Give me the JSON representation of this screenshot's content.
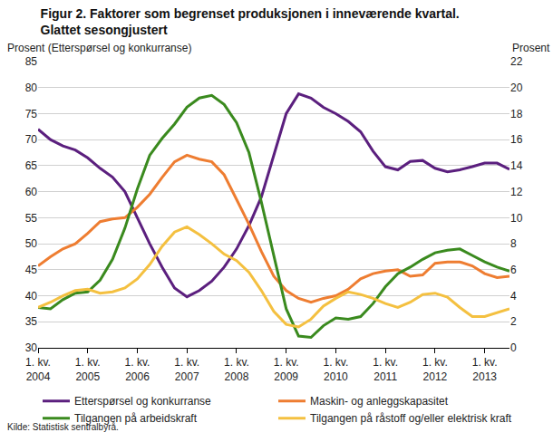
{
  "chart_data": {
    "type": "line",
    "title": "Figur 2. Faktorer som begrenset produksjonen i inneværende kvartal. Glattet sesongjustert",
    "y_label": "Prosent (Etterspørsel og konkurranse)",
    "y2_label": "Prosent",
    "source": "Kilde: Statistisk sentralbyrå.",
    "categories": [
      "1. kv. 2004",
      null,
      null,
      null,
      "1. kv. 2005",
      null,
      null,
      null,
      "1. kv. 2006",
      null,
      null,
      null,
      "1. kv. 2007",
      null,
      null,
      null,
      "1. kv. 2008",
      null,
      null,
      null,
      "1. kv. 2009",
      null,
      null,
      null,
      "1. kv. 2010",
      null,
      null,
      null,
      "1. kv. 2011",
      null,
      null,
      null,
      "1. kv. 2012",
      null,
      null,
      null,
      "1. kv. 2013",
      null,
      null
    ],
    "ylim": [
      30,
      85
    ],
    "yticks": [
      30,
      35,
      40,
      45,
      50,
      55,
      60,
      65,
      70,
      75,
      80,
      85
    ],
    "y2lim": [
      0,
      22
    ],
    "y2ticks": [
      0,
      2,
      4,
      6,
      8,
      10,
      12,
      14,
      16,
      18,
      20,
      22
    ],
    "grid": true,
    "legend": "bottom",
    "series": [
      {
        "name": "Etterspørsel og konkurranse",
        "color": "#5b1f7e",
        "axis": "y",
        "values": [
          72,
          70,
          68.8,
          68,
          66.5,
          64.5,
          62.8,
          60,
          55,
          50,
          45.5,
          41.5,
          39.8,
          41,
          42.8,
          45.5,
          49,
          53.5,
          59,
          67,
          75,
          78.8,
          78,
          76.2,
          75,
          73.5,
          71.5,
          67.8,
          64.8,
          64.2,
          65.8,
          66,
          64.5,
          63.8,
          64.2,
          64.8,
          65.5,
          65.5,
          64.3
        ]
      },
      {
        "name": "Maskin- og anleggskapasitet",
        "color": "#ee7d31",
        "axis": "y2",
        "values": [
          6.3,
          7.0,
          7.6,
          8.0,
          8.8,
          9.7,
          9.9,
          10.0,
          10.8,
          11.8,
          13.1,
          14.3,
          14.8,
          14.5,
          14.3,
          13.3,
          11.4,
          9.5,
          7.4,
          5.5,
          4.4,
          3.8,
          3.5,
          3.8,
          4.0,
          4.5,
          5.3,
          5.7,
          5.9,
          6.0,
          5.5,
          5.6,
          6.5,
          6.6,
          6.6,
          6.3,
          5.7,
          5.4,
          5.5
        ]
      },
      {
        "name": "Tilgangen på arbeidskraft",
        "color": "#3a8a1e",
        "axis": "y2",
        "values": [
          3.1,
          3.0,
          3.7,
          4.2,
          4.3,
          5.2,
          6.8,
          9.2,
          12.2,
          14.8,
          16.1,
          17.2,
          18.5,
          19.2,
          19.4,
          18.7,
          17.3,
          15.0,
          11.2,
          7.2,
          3.0,
          0.9,
          0.8,
          1.7,
          2.3,
          2.2,
          2.4,
          3.4,
          4.7,
          5.7,
          6.2,
          6.8,
          7.3,
          7.5,
          7.6,
          7.1,
          6.6,
          6.2,
          5.9
        ]
      },
      {
        "name": "Tilgangen på råstoff og/eller elektrisk kraft",
        "color": "#f4c040",
        "axis": "y2",
        "values": [
          3.1,
          3.5,
          4.0,
          4.4,
          4.5,
          4.2,
          4.3,
          4.6,
          5.3,
          6.4,
          7.8,
          8.9,
          9.3,
          8.7,
          8.0,
          7.2,
          6.7,
          5.8,
          4.4,
          2.8,
          1.8,
          1.6,
          2.2,
          3.2,
          3.8,
          4.3,
          4.1,
          3.8,
          3.4,
          3.1,
          3.5,
          4.1,
          4.2,
          3.9,
          3.1,
          2.4,
          2.4,
          2.7,
          3.0
        ]
      }
    ]
  }
}
